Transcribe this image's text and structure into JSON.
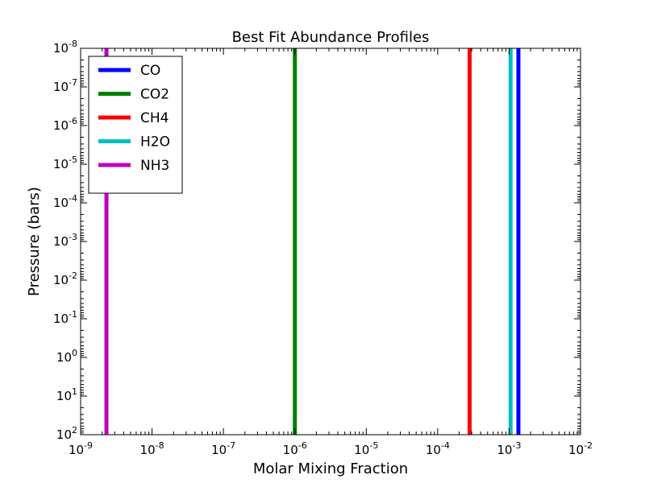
{
  "chart_data": {
    "type": "line",
    "title": "Best Fit Abundance Profiles",
    "xlabel": "Molar Mixing Fraction",
    "ylabel": "Pressure (bars)",
    "x_scale": "log",
    "y_scale": "log",
    "y_inverted": true,
    "xlim": [
      1e-09,
      0.01
    ],
    "ylim": [
      100,
      1e-08
    ],
    "x_ticks": [
      {
        "base": "10",
        "exp": "-9"
      },
      {
        "base": "10",
        "exp": "-8"
      },
      {
        "base": "10",
        "exp": "-7"
      },
      {
        "base": "10",
        "exp": "-6"
      },
      {
        "base": "10",
        "exp": "-5"
      },
      {
        "base": "10",
        "exp": "-4"
      },
      {
        "base": "10",
        "exp": "-3"
      },
      {
        "base": "10",
        "exp": "-2"
      }
    ],
    "y_ticks": [
      {
        "base": "10",
        "exp": "-8"
      },
      {
        "base": "10",
        "exp": "-7"
      },
      {
        "base": "10",
        "exp": "-6"
      },
      {
        "base": "10",
        "exp": "-5"
      },
      {
        "base": "10",
        "exp": "-4"
      },
      {
        "base": "10",
        "exp": "-3"
      },
      {
        "base": "10",
        "exp": "-2"
      },
      {
        "base": "10",
        "exp": "-1"
      },
      {
        "base": "10",
        "exp": "0"
      },
      {
        "base": "10",
        "exp": "1"
      },
      {
        "base": "10",
        "exp": "2"
      }
    ],
    "grid": false,
    "legend_position": "top-left",
    "series": [
      {
        "name": "CO",
        "color": "#0000ff",
        "x": [
          0.00135,
          0.00135
        ],
        "y": [
          100,
          1e-08
        ]
      },
      {
        "name": "CO2",
        "color": "#008000",
        "x": [
          1e-06,
          1e-06
        ],
        "y": [
          100,
          1e-08
        ]
      },
      {
        "name": "CH4",
        "color": "#ff0000",
        "x": [
          0.00028,
          0.00028
        ],
        "y": [
          100,
          1e-08
        ]
      },
      {
        "name": "H2O",
        "color": "#00bfbf",
        "x": [
          0.00105,
          0.00105
        ],
        "y": [
          100,
          1e-08
        ]
      },
      {
        "name": "NH3",
        "color": "#bf00bf",
        "x": [
          2.3e-09,
          2.3e-09
        ],
        "y": [
          100,
          1e-08
        ]
      }
    ]
  }
}
